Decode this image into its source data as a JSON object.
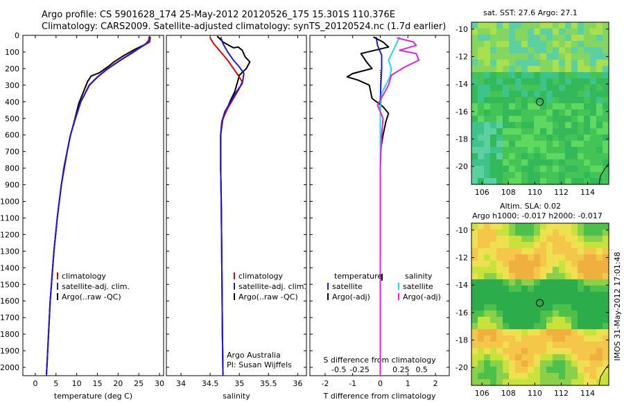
{
  "header": {
    "line1": "Argo profile: CS 5901628_174 25-May-2012 20120526_175 15.301S 110.376E",
    "line2": "Climatology: CARS2009. Satellite-adjusted climatology: synTS_20120524.nc (1.7d earlier)"
  },
  "colors": {
    "climatology": "#e00000",
    "satellite": "#1a1adf",
    "argo": "#000000",
    "sal_satellite": "#22d8e6",
    "sal_argo": "#e020e0"
  },
  "chart_data": [
    {
      "type": "line",
      "xlabel": "temperature (deg C)",
      "ylabel": "",
      "xlim": [
        -3,
        31
      ],
      "ylim": [
        2060,
        0
      ],
      "xticks": [
        0,
        5,
        10,
        15,
        20,
        25,
        30
      ],
      "yticks": [
        0,
        100,
        200,
        300,
        400,
        500,
        600,
        700,
        800,
        900,
        1000,
        1100,
        1200,
        1300,
        1400,
        1500,
        1600,
        1700,
        1800,
        1900,
        2000
      ],
      "legend": {
        "position": "bottom-center",
        "entries": [
          "climatology",
          "satellite-adj. clim.",
          "Argo(..raw -QC)"
        ]
      },
      "series": [
        {
          "name": "climatology",
          "color_key": "climatology",
          "points": [
            [
              27.5,
              10
            ],
            [
              27.3,
              40
            ],
            [
              25.5,
              70
            ],
            [
              23,
              110
            ],
            [
              20.5,
              150
            ],
            [
              17.5,
              200
            ],
            [
              15,
              250
            ],
            [
              13,
              300
            ],
            [
              11,
              400
            ],
            [
              9.7,
              500
            ],
            [
              8.5,
              600
            ],
            [
              7.7,
              700
            ],
            [
              7,
              800
            ],
            [
              6.3,
              900
            ],
            [
              5.8,
              1000
            ],
            [
              5.3,
              1100
            ],
            [
              4.9,
              1200
            ],
            [
              4.5,
              1300
            ],
            [
              4.2,
              1400
            ],
            [
              3.9,
              1500
            ],
            [
              3.6,
              1600
            ],
            [
              3.4,
              1700
            ],
            [
              3.2,
              1800
            ],
            [
              3,
              1900
            ],
            [
              2.8,
              2000
            ],
            [
              2.7,
              2050
            ]
          ]
        },
        {
          "name": "satellite-adj. clim.",
          "color_key": "satellite",
          "points": [
            [
              27.8,
              10
            ],
            [
              27.6,
              40
            ],
            [
              25.6,
              70
            ],
            [
              23.2,
              110
            ],
            [
              20.6,
              150
            ],
            [
              17.6,
              200
            ],
            [
              15.1,
              250
            ],
            [
              13.1,
              300
            ],
            [
              11,
              400
            ],
            [
              9.7,
              500
            ],
            [
              8.5,
              600
            ],
            [
              7.7,
              700
            ],
            [
              7,
              800
            ],
            [
              6.3,
              900
            ],
            [
              5.8,
              1000
            ],
            [
              5.3,
              1100
            ],
            [
              4.9,
              1200
            ],
            [
              4.5,
              1300
            ],
            [
              4.2,
              1400
            ],
            [
              3.9,
              1500
            ],
            [
              3.6,
              1600
            ],
            [
              3.4,
              1700
            ],
            [
              3.2,
              1800
            ],
            [
              3,
              1900
            ],
            [
              2.8,
              2000
            ],
            [
              2.7,
              2050
            ]
          ]
        },
        {
          "name": "Argo(..raw -QC)",
          "color_key": "argo",
          "points": [
            [
              27.6,
              5
            ],
            [
              27.5,
              30
            ],
            [
              26.5,
              55
            ],
            [
              24,
              85
            ],
            [
              21.5,
              120
            ],
            [
              19,
              160
            ],
            [
              17.5,
              190
            ],
            [
              15.5,
              225
            ],
            [
              13.5,
              245
            ],
            [
              12.6,
              280
            ],
            [
              11.8,
              330
            ],
            [
              10.5,
              410
            ],
            [
              9.5,
              510
            ],
            [
              8.4,
              610
            ],
            [
              7.6,
              710
            ],
            [
              6.9,
              800
            ],
            [
              6.3,
              900
            ],
            [
              5.8,
              1000
            ],
            [
              5.3,
              1100
            ],
            [
              4.9,
              1200
            ],
            [
              4.5,
              1300
            ],
            [
              4.2,
              1400
            ],
            [
              3.9,
              1500
            ],
            [
              3.6,
              1600
            ],
            [
              3.4,
              1700
            ],
            [
              3.2,
              1800
            ],
            [
              3,
              1900
            ],
            [
              2.8,
              2000
            ],
            [
              2.7,
              2040
            ]
          ]
        }
      ]
    },
    {
      "type": "line",
      "xlabel": "salinity",
      "ylabel": "",
      "xlim": [
        33.75,
        36.15
      ],
      "ylim": [
        2060,
        0
      ],
      "xticks": [
        34,
        34.5,
        35,
        35.5,
        36
      ],
      "xticklabels": [
        "34",
        "34.5",
        "35",
        "35.5",
        "36"
      ],
      "legend": {
        "position": "bottom-center",
        "entries": [
          "climatology",
          "satellite-adj. clim.",
          "Argo(..raw -QC)"
        ]
      },
      "annotation": [
        "Argo Australia",
        "PI: Susan Wijffels"
      ],
      "series": [
        {
          "name": "climatology",
          "color_key": "climatology",
          "points": [
            [
              34.5,
              15
            ],
            [
              34.56,
              50
            ],
            [
              34.68,
              100
            ],
            [
              34.8,
              150
            ],
            [
              34.9,
              200
            ],
            [
              34.98,
              240
            ],
            [
              35.05,
              280
            ],
            [
              35,
              320
            ],
            [
              34.9,
              380
            ],
            [
              34.8,
              440
            ],
            [
              34.72,
              500
            ],
            [
              34.68,
              600
            ],
            [
              34.68,
              800
            ],
            [
              34.69,
              1000
            ],
            [
              34.7,
              1400
            ],
            [
              34.71,
              1800
            ],
            [
              34.72,
              2050
            ]
          ]
        },
        {
          "name": "satellite-adj. clim.",
          "color_key": "satellite",
          "points": [
            [
              34.68,
              10
            ],
            [
              34.72,
              50
            ],
            [
              34.8,
              100
            ],
            [
              34.9,
              150
            ],
            [
              35,
              190
            ],
            [
              35.08,
              230
            ],
            [
              35.05,
              290
            ],
            [
              34.95,
              340
            ],
            [
              34.85,
              400
            ],
            [
              34.75,
              460
            ],
            [
              34.7,
              520
            ],
            [
              34.68,
              600
            ],
            [
              34.68,
              800
            ],
            [
              34.69,
              1000
            ],
            [
              34.7,
              1400
            ],
            [
              34.71,
              1800
            ],
            [
              34.72,
              2050
            ]
          ]
        },
        {
          "name": "Argo(..raw -QC)",
          "color_key": "argo",
          "points": [
            [
              34.62,
              5
            ],
            [
              34.72,
              40
            ],
            [
              34.82,
              60
            ],
            [
              34.9,
              75
            ],
            [
              34.98,
              70
            ],
            [
              35.05,
              90
            ],
            [
              35.1,
              130
            ],
            [
              35.18,
              160
            ],
            [
              35.12,
              200
            ],
            [
              35,
              240
            ],
            [
              34.97,
              280
            ],
            [
              34.92,
              340
            ],
            [
              34.85,
              390
            ],
            [
              34.78,
              450
            ],
            [
              34.7,
              520
            ],
            [
              34.68,
              600
            ],
            [
              34.68,
              800
            ],
            [
              34.69,
              1000
            ],
            [
              34.7,
              1400
            ],
            [
              34.71,
              1800
            ],
            [
              34.72,
              2040
            ]
          ]
        }
      ]
    },
    {
      "type": "line",
      "xlabel": "T difference from climatology",
      "xlabel_top": "S difference from climatology",
      "xlim": [
        -2.55,
        2.5
      ],
      "ylim": [
        2060,
        0
      ],
      "xticks": [
        -2,
        -1,
        0,
        1,
        2
      ],
      "xticks_top": [
        -1.5,
        -0.75,
        0.75,
        1.5
      ],
      "xticklabels_top": [
        "-0.5",
        "-0.25",
        "0.25",
        "0.5"
      ],
      "legend": {
        "position": "bottom",
        "titles": [
          "temperature",
          "salinity"
        ],
        "entries": [
          "satellite",
          "Argo(-adj)",
          "satellite",
          "Argo(-adj)"
        ]
      },
      "series": [
        {
          "name": "temperature satellite",
          "color_key": "satellite",
          "points": [
            [
              -0.15,
              10
            ],
            [
              -0.1,
              60
            ],
            [
              0.05,
              120
            ],
            [
              0.05,
              200
            ],
            [
              0.02,
              300
            ],
            [
              0,
              400
            ],
            [
              0,
              600
            ],
            [
              0,
              1000
            ],
            [
              0,
              1500
            ],
            [
              0,
              2050
            ]
          ]
        },
        {
          "name": "temperature Argo(-adj)",
          "color_key": "argo",
          "points": [
            [
              -0.25,
              10
            ],
            [
              0.1,
              40
            ],
            [
              0.3,
              70
            ],
            [
              -0.7,
              110
            ],
            [
              -0.5,
              160
            ],
            [
              -0.3,
              200
            ],
            [
              -1,
              230
            ],
            [
              -1.2,
              250
            ],
            [
              -0.8,
              270
            ],
            [
              -0.4,
              300
            ],
            [
              -0.3,
              380
            ],
            [
              0.1,
              430
            ],
            [
              0.3,
              470
            ],
            [
              0.2,
              520
            ],
            [
              0.1,
              600
            ],
            [
              0,
              700
            ],
            [
              0,
              800
            ],
            [
              0,
              1000
            ],
            [
              0,
              1400
            ],
            [
              0,
              1800
            ],
            [
              0,
              2040
            ]
          ]
        },
        {
          "name": "salinity satellite",
          "color_key": "sal_satellite",
          "points": [
            [
              0.7,
              10
            ],
            [
              0.5,
              80
            ],
            [
              0.3,
              150
            ],
            [
              0.4,
              200
            ],
            [
              0.35,
              250
            ],
            [
              0.2,
              300
            ],
            [
              0.05,
              350
            ],
            [
              0,
              450
            ],
            [
              0,
              600
            ],
            [
              0,
              1000
            ],
            [
              0,
              1500
            ],
            [
              0,
              2050
            ]
          ]
        },
        {
          "name": "salinity Argo(-adj)",
          "color_key": "sal_argo",
          "points": [
            [
              0.6,
              15
            ],
            [
              1.2,
              40
            ],
            [
              1.3,
              60
            ],
            [
              0.7,
              90
            ],
            [
              1.3,
              110
            ],
            [
              1.4,
              150
            ],
            [
              0.9,
              190
            ],
            [
              0.4,
              240
            ],
            [
              0.3,
              300
            ],
            [
              0.1,
              360
            ],
            [
              -0.1,
              420
            ],
            [
              0.1,
              500
            ],
            [
              0.05,
              600
            ],
            [
              0,
              800
            ],
            [
              0,
              1200
            ],
            [
              0,
              2050
            ]
          ]
        }
      ]
    }
  ],
  "maps": [
    {
      "title": "sat. SST: 27.6 Argo: 27.1",
      "subtitle": "",
      "xlim": [
        105.2,
        115.6
      ],
      "ylim": [
        -21.3,
        -9.5
      ],
      "xticks": [
        106,
        108,
        110,
        112,
        114
      ],
      "yticks": [
        -10,
        -12,
        -14,
        -16,
        -18,
        -20
      ],
      "marker": [
        110.376,
        -15.301
      ],
      "palette": [
        "#5fd85f",
        "#44c455",
        "#33b85a",
        "#3ec48a",
        "#5cd0a0",
        "#84d660",
        "#a8e050"
      ]
    },
    {
      "title": "Altim. SLA: 0.02",
      "subtitle": "Argo h1000: -0.017 h2000: -0.017",
      "xlim": [
        105.2,
        115.6
      ],
      "ylim": [
        -21.3,
        -9.5
      ],
      "xticks": [
        106,
        108,
        110,
        112,
        114
      ],
      "yticks": [
        -10,
        -12,
        -14,
        -16,
        -18,
        -20
      ],
      "marker": [
        110.376,
        -15.301
      ],
      "palette": [
        "#2cac4a",
        "#4cc04a",
        "#8ad04a",
        "#c8e23c",
        "#eee050",
        "#f4c64a",
        "#f0b040"
      ]
    }
  ],
  "footer": {
    "stamp": "IMOS 31-May-2012 17:01:48"
  }
}
